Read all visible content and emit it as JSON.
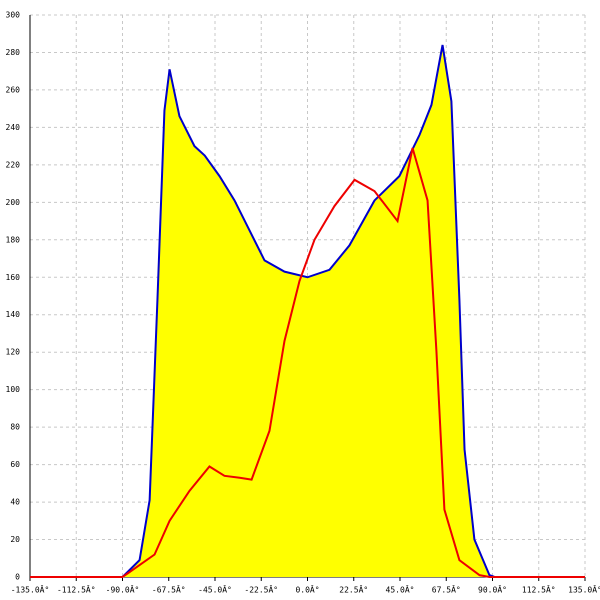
{
  "chart_data": {
    "type": "line",
    "xlim": [
      -135,
      135
    ],
    "xticks": [
      {
        "value": -135,
        "label": "-135.0Â°"
      },
      {
        "value": -112.5,
        "label": "-112.5Â°"
      },
      {
        "value": -90,
        "label": "-90.0Â°"
      },
      {
        "value": -67.5,
        "label": "-67.5Â°"
      },
      {
        "value": -45,
        "label": "-45.0Â°"
      },
      {
        "value": -22.5,
        "label": "-22.5Â°"
      },
      {
        "value": 0,
        "label": "0.0Â°"
      },
      {
        "value": 22.5,
        "label": "22.5Â°"
      },
      {
        "value": 45,
        "label": "45.0Â°"
      },
      {
        "value": 67.5,
        "label": "67.5Â°"
      },
      {
        "value": 90,
        "label": "90.0Â°"
      },
      {
        "value": 112.5,
        "label": "112.5Â°"
      },
      {
        "value": 135,
        "label": "135.0Â°"
      }
    ],
    "ylim": [
      0,
      300
    ],
    "yticks": [
      0,
      20,
      40,
      60,
      80,
      100,
      120,
      140,
      160,
      180,
      200,
      220,
      240,
      260,
      280,
      300
    ],
    "grid": true,
    "series": [
      {
        "color": "#0000cc",
        "fill": "#ffff00",
        "x": [
          -90,
          -81.7,
          -76.8,
          -73,
          -69.6,
          -67.1,
          -62.3,
          -55,
          -50,
          -42.8,
          -35.5,
          -28.2,
          -20.9,
          -11.2,
          0,
          10.7,
          20.4,
          32.6,
          44.7,
          54.5,
          60.3,
          65.7,
          70,
          73.9,
          76.4,
          81.2,
          88.5,
          91
        ],
        "values": [
          0,
          9,
          41,
          148,
          249,
          271,
          246,
          230,
          225,
          214,
          201,
          185,
          169,
          163,
          160,
          164,
          177,
          201,
          214,
          236,
          252,
          284,
          254,
          148,
          68,
          20,
          1,
          0
        ]
      },
      {
        "color": "#ee0000",
        "x": [
          -135,
          -90,
          -74.4,
          -67.1,
          -57.4,
          -47.7,
          -40.4,
          -33,
          -27.2,
          -18.5,
          -11.2,
          -3.9,
          3.4,
          13.1,
          22.9,
          32.6,
          43.8,
          51.1,
          58.4,
          62.7,
          66.6,
          73.9,
          83.7,
          88.5,
          135
        ],
        "values": [
          0,
          0,
          12,
          30,
          46,
          59,
          54,
          53,
          52,
          78,
          126,
          158,
          180,
          198,
          212,
          206,
          190,
          229,
          201,
          121,
          36,
          9,
          1,
          0,
          0
        ]
      }
    ]
  }
}
